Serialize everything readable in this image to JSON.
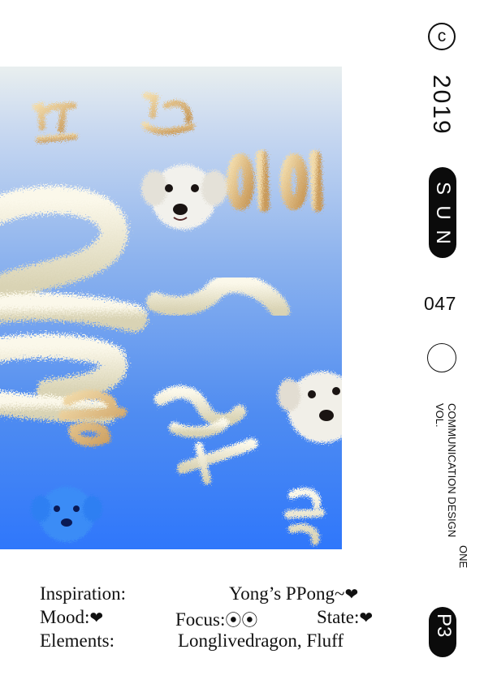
{
  "sidebar": {
    "copyright_symbol": "c",
    "year": "2019",
    "sun_letters": [
      "S",
      "U",
      "N"
    ],
    "issue_number": "047",
    "vol_line1": "COMMUNICATION DESIGN",
    "vol_label": "VOL.",
    "vol_line2": "ONE",
    "page": "P3"
  },
  "info": {
    "inspiration_label": "Inspiration:",
    "inspiration_value": "Yong’s PPong~",
    "mood_label": "Mood:",
    "focus_label": "Focus:",
    "focus_value": "⦿⦿",
    "state_label": "State:",
    "elements_label": "Elements:",
    "elements_value": "Longlivedragon, Fluff",
    "heart": "❤"
  },
  "colors": {
    "gradient_top": "#e9efef",
    "gradient_bottom": "#2f77fb",
    "fluff": "#f1ecd2",
    "fluff_gold": "#d8b57a",
    "ink": "#111111"
  },
  "artwork": {
    "elements": [
      "fluffy-number-2-shape",
      "fluffy-golden-glyphs",
      "bichon-dog-head-white",
      "bichon-dog-head-blue"
    ]
  }
}
